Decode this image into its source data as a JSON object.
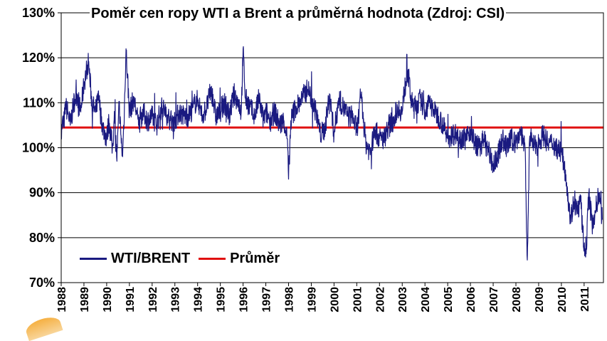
{
  "chart_data": {
    "type": "line",
    "title": "Poměr cen ropy WTI a Brent a průměrná hodnota (Zdroj: CSI)",
    "ylim": [
      0.7,
      1.3
    ],
    "xlim": [
      1988,
      2011.85
    ],
    "ytick_labels": [
      "70%",
      "80%",
      "90%",
      "100%",
      "110%",
      "120%",
      "130%"
    ],
    "ytick_values": [
      0.7,
      0.8,
      0.9,
      1.0,
      1.1,
      1.2,
      1.3
    ],
    "xtick_labels": [
      "1988",
      "1989",
      "1990",
      "1991",
      "1992",
      "1993",
      "1994",
      "1995",
      "1996",
      "1997",
      "1998",
      "1999",
      "2000",
      "2001",
      "2002",
      "2003",
      "2004",
      "2005",
      "2006",
      "2007",
      "2008",
      "2009",
      "2010",
      "2011"
    ],
    "grid": "horizontal",
    "legend_position": "bottom-left",
    "series": [
      {
        "name": "WTI/BRENT",
        "color": "#1a1a80",
        "x": [
          1988.0,
          1988.05,
          1988.1,
          1988.2,
          1988.3,
          1988.4,
          1988.55,
          1988.7,
          1988.85,
          1989.0,
          1989.1,
          1989.2,
          1989.35,
          1989.5,
          1989.65,
          1989.8,
          1990.0,
          1990.1,
          1990.25,
          1990.35,
          1990.45,
          1990.55,
          1990.62,
          1990.7,
          1990.78,
          1990.85,
          1991.0,
          1991.2,
          1991.4,
          1991.6,
          1991.8,
          1992.0,
          1992.2,
          1992.4,
          1992.6,
          1992.8,
          1993.0,
          1993.2,
          1993.4,
          1993.6,
          1993.8,
          1994.0,
          1994.2,
          1994.4,
          1994.6,
          1994.8,
          1995.0,
          1995.2,
          1995.4,
          1995.6,
          1995.8,
          1995.92,
          1996.0,
          1996.1,
          1996.3,
          1996.5,
          1996.7,
          1996.9,
          1997.0,
          1997.2,
          1997.4,
          1997.6,
          1997.8,
          1997.95,
          1998.0,
          1998.1,
          1998.3,
          1998.5,
          1998.7,
          1998.85,
          1999.0,
          1999.2,
          1999.4,
          1999.6,
          1999.8,
          2000.0,
          2000.2,
          2000.4,
          2000.6,
          2000.8,
          2001.0,
          2001.2,
          2001.4,
          2001.6,
          2001.8,
          2002.0,
          2002.2,
          2002.4,
          2002.6,
          2002.8,
          2003.0,
          2003.1,
          2003.25,
          2003.4,
          2003.6,
          2003.8,
          2004.0,
          2004.2,
          2004.4,
          2004.6,
          2004.8,
          2005.0,
          2005.2,
          2005.4,
          2005.6,
          2005.8,
          2006.0,
          2006.2,
          2006.4,
          2006.6,
          2006.8,
          2007.0,
          2007.2,
          2007.4,
          2007.6,
          2007.8,
          2008.0,
          2008.2,
          2008.4,
          2008.5,
          2008.6,
          2008.7,
          2008.8,
          2009.0,
          2009.2,
          2009.4,
          2009.6,
          2009.8,
          2010.0,
          2010.2,
          2010.4,
          2010.55,
          2010.7,
          2010.85,
          2011.0,
          2011.1,
          2011.2,
          2011.35,
          2011.5,
          2011.65,
          2011.8
        ],
        "y": [
          1.02,
          1.06,
          1.05,
          1.09,
          1.08,
          1.05,
          1.1,
          1.12,
          1.08,
          1.14,
          1.17,
          1.19,
          1.1,
          1.08,
          1.11,
          1.05,
          1.02,
          1.06,
          1.0,
          1.07,
          0.97,
          1.1,
          1.03,
          0.98,
          1.09,
          1.22,
          1.08,
          1.11,
          1.05,
          1.08,
          1.06,
          1.07,
          1.05,
          1.09,
          1.08,
          1.06,
          1.06,
          1.08,
          1.07,
          1.07,
          1.09,
          1.11,
          1.07,
          1.09,
          1.13,
          1.07,
          1.08,
          1.1,
          1.07,
          1.12,
          1.1,
          1.08,
          1.22,
          1.11,
          1.09,
          1.07,
          1.11,
          1.06,
          1.08,
          1.06,
          1.08,
          1.05,
          1.06,
          1.02,
          0.93,
          1.06,
          1.09,
          1.1,
          1.12,
          1.13,
          1.11,
          1.08,
          1.03,
          1.04,
          1.12,
          1.03,
          1.11,
          1.09,
          1.07,
          1.07,
          1.04,
          1.11,
          1.01,
          0.99,
          1.04,
          1.02,
          1.02,
          1.05,
          1.06,
          1.09,
          1.08,
          1.13,
          1.17,
          1.1,
          1.09,
          1.11,
          1.08,
          1.1,
          1.08,
          1.07,
          1.05,
          1.02,
          1.03,
          1.03,
          1.02,
          1.02,
          1.04,
          1.01,
          1.0,
          1.02,
          0.99,
          0.96,
          0.98,
          1.02,
          1.0,
          1.02,
          1.01,
          1.04,
          1.0,
          0.75,
          1.02,
          1.02,
          1.0,
          1.01,
          1.03,
          1.01,
          1.01,
          1.0,
          0.99,
          0.94,
          0.84,
          0.88,
          0.86,
          0.88,
          0.77,
          0.78,
          0.9,
          0.83,
          0.86,
          0.9,
          0.84
        ]
      },
      {
        "name": "Průměr",
        "color": "#e01010",
        "value": 1.045
      }
    ]
  }
}
